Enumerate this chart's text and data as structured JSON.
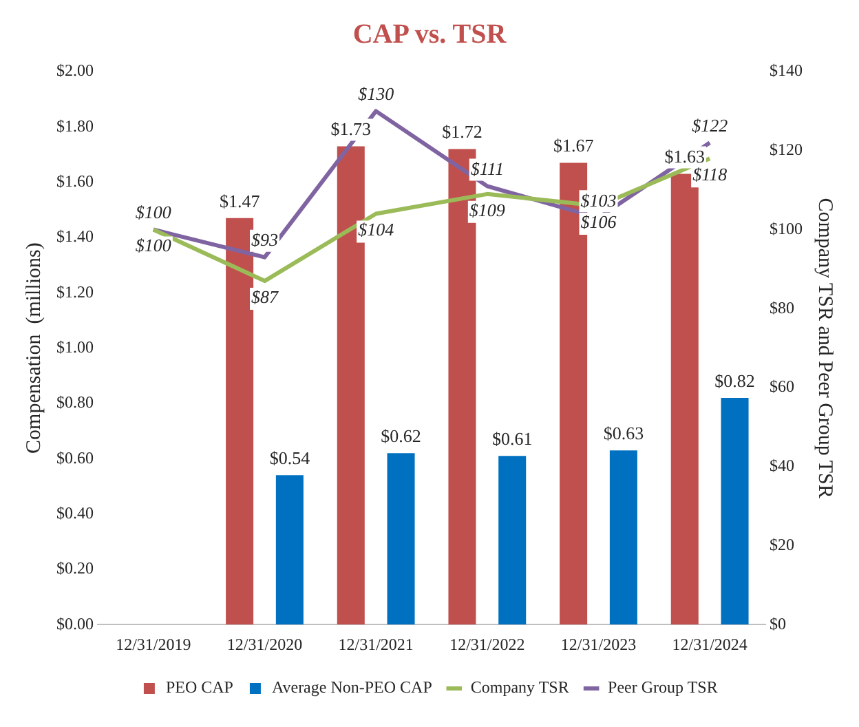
{
  "chart_data": {
    "type": "bar",
    "title": "CAP vs. TSR",
    "ylabel": "Compensation  (millions)",
    "y2label": "Company TSR and Peer Group TSR",
    "categories": [
      "12/31/2019",
      "12/31/2020",
      "12/31/2021",
      "12/31/2022",
      "12/31/2023",
      "12/31/2024"
    ],
    "series": [
      {
        "name": "PEO CAP",
        "color": "#c0504d",
        "values": [
          null,
          1.47,
          1.73,
          1.72,
          1.67,
          1.63
        ],
        "value_labels": [
          null,
          "$1.47",
          "$1.73",
          "$1.72",
          "$1.67",
          "$1.63"
        ]
      },
      {
        "name": "Average Non-PEO CAP",
        "color": "#0070c0",
        "values": [
          null,
          0.54,
          0.62,
          0.61,
          0.63,
          0.82
        ],
        "value_labels": [
          null,
          "$0.54",
          "$0.62",
          "$0.61",
          "$0.63",
          "$0.82"
        ]
      },
      {
        "name": "Company TSR",
        "type": "line",
        "axis": "y2",
        "color": "#9bbb59",
        "values": [
          100,
          87,
          104,
          109,
          106,
          118
        ],
        "value_labels": [
          "$100",
          "$87",
          "$104",
          "$109",
          "$106",
          "$118"
        ]
      },
      {
        "name": "Peer Group TSR",
        "type": "line",
        "axis": "y2",
        "color": "#8064a2",
        "values": [
          100,
          93,
          130,
          111,
          103,
          122
        ],
        "value_labels": [
          "$100",
          "$93",
          "$130",
          "$111",
          "$103",
          "$122"
        ]
      }
    ],
    "ylim": [
      0,
      2
    ],
    "yticks": [
      {
        "value": 0,
        "label": "$0.00"
      },
      {
        "value": 0.2,
        "label": "$0.20"
      },
      {
        "value": 0.4,
        "label": "$0.40"
      },
      {
        "value": 0.6,
        "label": "$0.60"
      },
      {
        "value": 0.8,
        "label": "$0.80"
      },
      {
        "value": 1,
        "label": "$1.00"
      },
      {
        "value": 1.2,
        "label": "$1.20"
      },
      {
        "value": 1.4,
        "label": "$1.40"
      },
      {
        "value": 1.6,
        "label": "$1.60"
      },
      {
        "value": 1.8,
        "label": "$1.80"
      },
      {
        "value": 2,
        "label": "$2.00"
      }
    ],
    "y2lim": [
      0,
      140
    ],
    "y2ticks": [
      {
        "value": 0,
        "label": "$0"
      },
      {
        "value": 20,
        "label": "$20"
      },
      {
        "value": 40,
        "label": "$40"
      },
      {
        "value": 60,
        "label": "$60"
      },
      {
        "value": 80,
        "label": "$80"
      },
      {
        "value": 100,
        "label": "$100"
      },
      {
        "value": 120,
        "label": "$120"
      },
      {
        "value": 140,
        "label": "$140"
      }
    ],
    "grid": false,
    "legend": "bottom",
    "marker": "none"
  }
}
